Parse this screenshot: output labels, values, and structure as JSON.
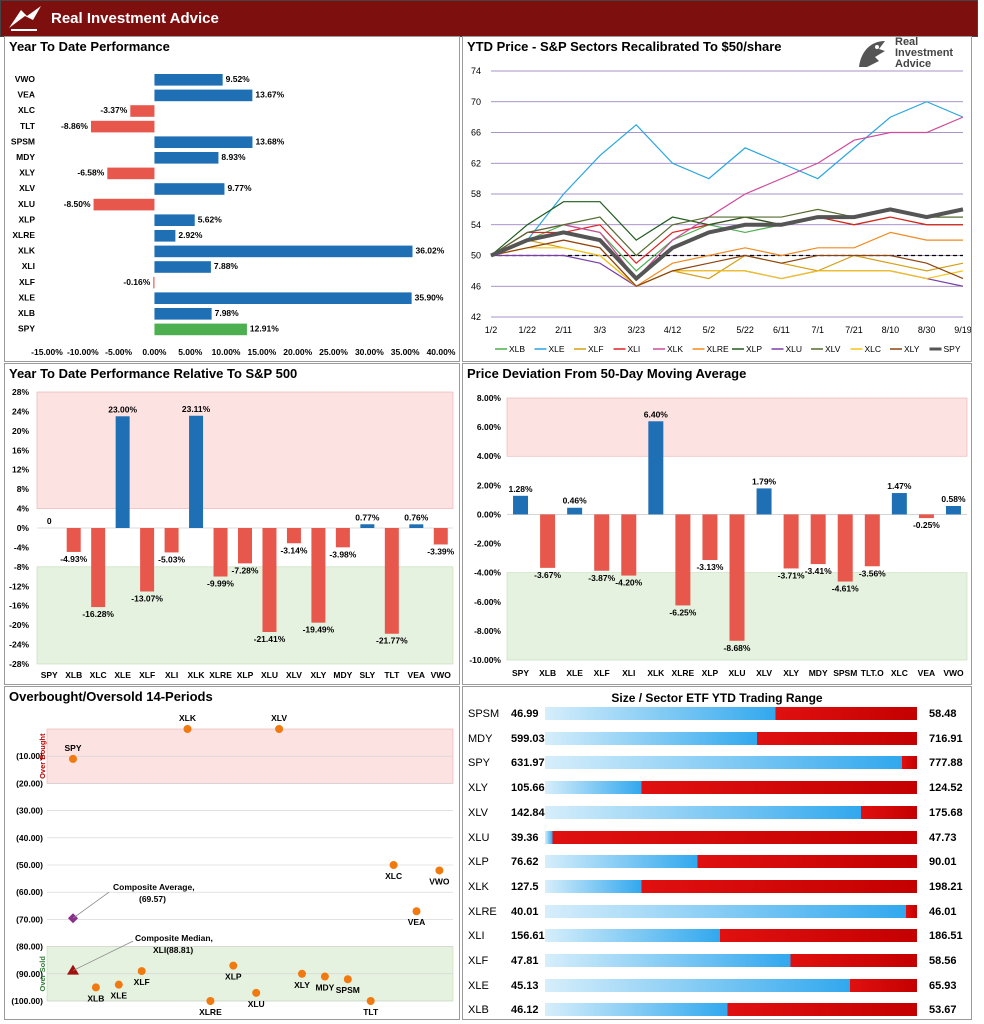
{
  "header": {
    "title": "Real Investment Advice"
  },
  "logo": {
    "line1": "Real",
    "line2": "Investment",
    "line3": "Advice"
  },
  "panels": {
    "ytd": {
      "title": "Year To Date Performance"
    },
    "sector_price": {
      "title": "YTD Price - S&P Sectors Recalibrated To $50/share"
    },
    "relative": {
      "title": "Year To Date Performance Relative To S&P 500"
    },
    "deviation": {
      "title": "Price Deviation From 50-Day Moving Average"
    },
    "obos": {
      "title": "Overbought/Oversold 14-Periods"
    },
    "range": {
      "title": "Size / Sector ETF YTD Trading Range"
    }
  },
  "colors": {
    "positive": "#1f6fb5",
    "negative": "#e8574c",
    "spy": "#4caf50",
    "overbought_band": "#fde2e2",
    "oversold_band": "#e6f2e0",
    "low_bar": "#31a8ee",
    "high_bar": "#e01010"
  },
  "chart_data": [
    {
      "type": "bar",
      "orientation": "horizontal",
      "title": "Year To Date Performance",
      "categories": [
        "VWO",
        "VEA",
        "XLC",
        "TLT",
        "SPSM",
        "MDY",
        "XLY",
        "XLV",
        "XLU",
        "XLP",
        "XLRE",
        "XLK",
        "XLI",
        "XLF",
        "XLE",
        "XLB",
        "SPY"
      ],
      "values": [
        9.52,
        13.67,
        -3.37,
        -8.86,
        13.68,
        8.93,
        -6.58,
        9.77,
        -8.5,
        5.62,
        2.92,
        36.02,
        7.88,
        -0.16,
        35.9,
        7.98,
        12.91
      ],
      "labels": [
        "9.52%",
        "13.67%",
        "-3.37%",
        "-8.86%",
        "13.68%",
        "8.93%",
        "-6.58%",
        "9.77%",
        "-8.50%",
        "5.62%",
        "2.92%",
        "36.02%",
        "7.88%",
        "-0.16%",
        "35.90%",
        "7.98%",
        "12.91%"
      ],
      "xlim": [
        -15,
        40
      ],
      "xticks": [
        "-15.00%",
        "-10.00%",
        "-5.00%",
        "0.00%",
        "5.00%",
        "10.00%",
        "15.00%",
        "20.00%",
        "25.00%",
        "30.00%",
        "35.00%",
        "40.00%"
      ]
    },
    {
      "type": "line",
      "title": "YTD Price - S&P Sectors Recalibrated To $50/share",
      "x": [
        "1/2",
        "1/22",
        "2/11",
        "3/3",
        "3/23",
        "4/12",
        "5/2",
        "5/22",
        "6/11",
        "7/1",
        "7/21",
        "8/10",
        "8/30",
        "9/19"
      ],
      "ylim": [
        42,
        74
      ],
      "yticks": [
        "42",
        "46",
        "50",
        "54",
        "58",
        "62",
        "66",
        "70",
        "74"
      ],
      "reference_line": 50,
      "series": [
        {
          "name": "XLB",
          "color": "#4caf50",
          "values": [
            50,
            52,
            54,
            53,
            48,
            52,
            54,
            53,
            54,
            55,
            54,
            55,
            54,
            54
          ]
        },
        {
          "name": "XLE",
          "color": "#29a6e0",
          "values": [
            50,
            52,
            58,
            63,
            67,
            62,
            60,
            64,
            62,
            60,
            64,
            68,
            70,
            68
          ]
        },
        {
          "name": "XLF",
          "color": "#d4a017",
          "values": [
            50,
            52,
            51,
            50,
            46,
            48,
            47,
            50,
            49,
            48,
            50,
            49,
            48,
            49
          ]
        },
        {
          "name": "XLI",
          "color": "#e02020",
          "values": [
            50,
            53,
            53,
            54,
            49,
            53,
            54,
            55,
            54,
            55,
            54,
            55,
            54,
            54
          ]
        },
        {
          "name": "XLK",
          "color": "#d04a9a",
          "values": [
            50,
            53,
            54,
            53,
            47,
            52,
            55,
            58,
            60,
            62,
            65,
            66,
            66,
            68
          ]
        },
        {
          "name": "XLRE",
          "color": "#f08a20",
          "values": [
            50,
            51,
            52,
            51,
            46,
            49,
            50,
            51,
            50,
            51,
            51,
            53,
            52,
            52
          ]
        },
        {
          "name": "XLP",
          "color": "#1f5c1f",
          "values": [
            50,
            54,
            57,
            57,
            52,
            55,
            54,
            55,
            54,
            55,
            55,
            56,
            55,
            55
          ]
        },
        {
          "name": "XLU",
          "color": "#7a3fa8",
          "values": [
            50,
            50,
            50,
            49,
            46,
            48,
            48,
            48,
            47,
            48,
            48,
            48,
            47,
            46
          ]
        },
        {
          "name": "XLV",
          "color": "#556b2f",
          "values": [
            50,
            53,
            54,
            55,
            50,
            54,
            55,
            55,
            55,
            56,
            55,
            56,
            55,
            55
          ]
        },
        {
          "name": "XLC",
          "color": "#f5c518",
          "values": [
            50,
            51,
            51,
            50,
            46,
            48,
            48,
            48,
            47,
            48,
            48,
            48,
            47,
            48
          ]
        },
        {
          "name": "XLY",
          "color": "#8b4513",
          "values": [
            50,
            51,
            52,
            51,
            46,
            48,
            49,
            50,
            49,
            50,
            50,
            50,
            49,
            47
          ]
        },
        {
          "name": "SPY",
          "color": "#555555",
          "values": [
            50,
            52,
            53,
            52,
            47,
            51,
            53,
            54,
            54,
            55,
            55,
            56,
            55,
            56
          ]
        }
      ]
    },
    {
      "type": "bar",
      "title": "Year To Date Performance Relative To S&P 500",
      "categories": [
        "SPY",
        "XLB",
        "XLC",
        "XLE",
        "XLF",
        "XLI",
        "XLK",
        "XLRE",
        "XLP",
        "XLU",
        "XLV",
        "XLY",
        "MDY",
        "SLY",
        "TLT",
        "VEA",
        "VWO"
      ],
      "values": [
        0,
        -4.93,
        -16.28,
        23.0,
        -13.07,
        -5.03,
        23.11,
        -9.99,
        -7.28,
        -21.41,
        -3.14,
        -19.49,
        -3.98,
        0.77,
        -21.77,
        0.76,
        -3.39
      ],
      "labels": [
        "0",
        "-4.93%",
        "-16.28%",
        "23.00%",
        "-13.07%",
        "-5.03%",
        "23.11%",
        "-9.99%",
        "-7.28%",
        "-21.41%",
        "-3.14%",
        "-19.49%",
        "-3.98%",
        "0.77%",
        "-21.77%",
        "0.76%",
        "-3.39%"
      ],
      "ylim": [
        -28,
        28
      ],
      "yticks": [
        "28%",
        "24%",
        "20%",
        "16%",
        "12%",
        "8%",
        "4%",
        "0%",
        "-4%",
        "-8%",
        "-12%",
        "-16%",
        "-20%",
        "-24%",
        "-28%"
      ]
    },
    {
      "type": "bar",
      "title": "Price Deviation From 50-Day Moving Average",
      "categories": [
        "SPY",
        "XLB",
        "XLE",
        "XLF",
        "XLI",
        "XLK",
        "XLRE",
        "XLP",
        "XLU",
        "XLV",
        "XLY",
        "MDY",
        "SPSM",
        "TLT.O",
        "XLC",
        "VEA",
        "VWO"
      ],
      "values": [
        1.28,
        -3.67,
        0.46,
        -3.87,
        -4.2,
        6.4,
        -6.25,
        -3.13,
        -8.68,
        1.79,
        -3.71,
        -3.41,
        -4.61,
        -3.56,
        1.47,
        -0.25,
        0.58
      ],
      "labels": [
        "1.28%",
        "-3.67%",
        "0.46%",
        "-3.87%",
        "-4.20%",
        "6.40%",
        "-6.25%",
        "-3.13%",
        "-8.68%",
        "1.79%",
        "-3.71%",
        "-3.41%",
        "-4.61%",
        "-3.56%",
        "1.47%",
        "-0.25%",
        "0.58%"
      ],
      "ylim": [
        -10,
        8
      ],
      "yticks": [
        "8.00%",
        "6.00%",
        "4.00%",
        "2.00%",
        "0.00%",
        "-2.00%",
        "-4.00%",
        "-6.00%",
        "-8.00%",
        "-10.00%"
      ]
    },
    {
      "type": "scatter",
      "title": "Overbought/Oversold 14-Periods",
      "ylim": [
        -100,
        0
      ],
      "yticks": [
        "(10.00)",
        "(20.00)",
        "(30.00)",
        "(40.00)",
        "(50.00)",
        "(60.00)",
        "(70.00)",
        "(80.00)",
        "(90.00)",
        "(100.00)"
      ],
      "band_labels": {
        "overbought": "Over Bought",
        "oversold": "Over Sold"
      },
      "points": [
        {
          "label": "SPY",
          "x": 1,
          "y": -11
        },
        {
          "label": "XLB",
          "x": 2,
          "y": -95
        },
        {
          "label": "XLE",
          "x": 3,
          "y": -94
        },
        {
          "label": "XLF",
          "x": 4,
          "y": -89
        },
        {
          "label": "XLK",
          "x": 6,
          "y": 0
        },
        {
          "label": "XLRE",
          "x": 7,
          "y": -100
        },
        {
          "label": "XLP",
          "x": 8,
          "y": -87
        },
        {
          "label": "XLU",
          "x": 9,
          "y": -97
        },
        {
          "label": "XLV",
          "x": 10,
          "y": 0
        },
        {
          "label": "XLY",
          "x": 11,
          "y": -90
        },
        {
          "label": "MDY",
          "x": 12,
          "y": -91
        },
        {
          "label": "SPSM",
          "x": 13,
          "y": -92
        },
        {
          "label": "TLT",
          "x": 14,
          "y": -100
        },
        {
          "label": "XLC",
          "x": 15,
          "y": -50
        },
        {
          "label": "VEA",
          "x": 16,
          "y": -67
        },
        {
          "label": "VWO",
          "x": 17,
          "y": -52
        }
      ],
      "annotations": [
        {
          "text": "Composite Average,",
          "value": "(69.57)",
          "y": -69.57
        },
        {
          "text": "Composite Median,",
          "value": "XLI(88.81)",
          "y": -88.81
        }
      ]
    },
    {
      "type": "bar",
      "title": "Size / Sector ETF YTD Trading Range",
      "rows": [
        {
          "name": "SPSM",
          "low": "46.99",
          "high": "58.48",
          "position": 0.62
        },
        {
          "name": "MDY",
          "low": "599.03",
          "high": "716.91",
          "position": 0.57
        },
        {
          "name": "SPY",
          "low": "631.97",
          "high": "777.88",
          "position": 0.96
        },
        {
          "name": "XLY",
          "low": "105.66",
          "high": "124.52",
          "position": 0.26
        },
        {
          "name": "XLV",
          "low": "142.84",
          "high": "175.68",
          "position": 0.85
        },
        {
          "name": "XLU",
          "low": "39.36",
          "high": "47.73",
          "position": 0.02
        },
        {
          "name": "XLP",
          "low": "76.62",
          "high": "90.01",
          "position": 0.41
        },
        {
          "name": "XLK",
          "low": "127.5",
          "high": "198.21",
          "position": 0.26
        },
        {
          "name": "XLRE",
          "low": "40.01",
          "high": "46.01",
          "position": 0.97
        },
        {
          "name": "XLI",
          "low": "156.61",
          "high": "186.51",
          "position": 0.47
        },
        {
          "name": "XLF",
          "low": "47.81",
          "high": "58.56",
          "position": 0.66
        },
        {
          "name": "XLE",
          "low": "45.13",
          "high": "65.93",
          "position": 0.82
        },
        {
          "name": "XLB",
          "low": "46.12",
          "high": "53.67",
          "position": 0.49
        }
      ]
    }
  ]
}
